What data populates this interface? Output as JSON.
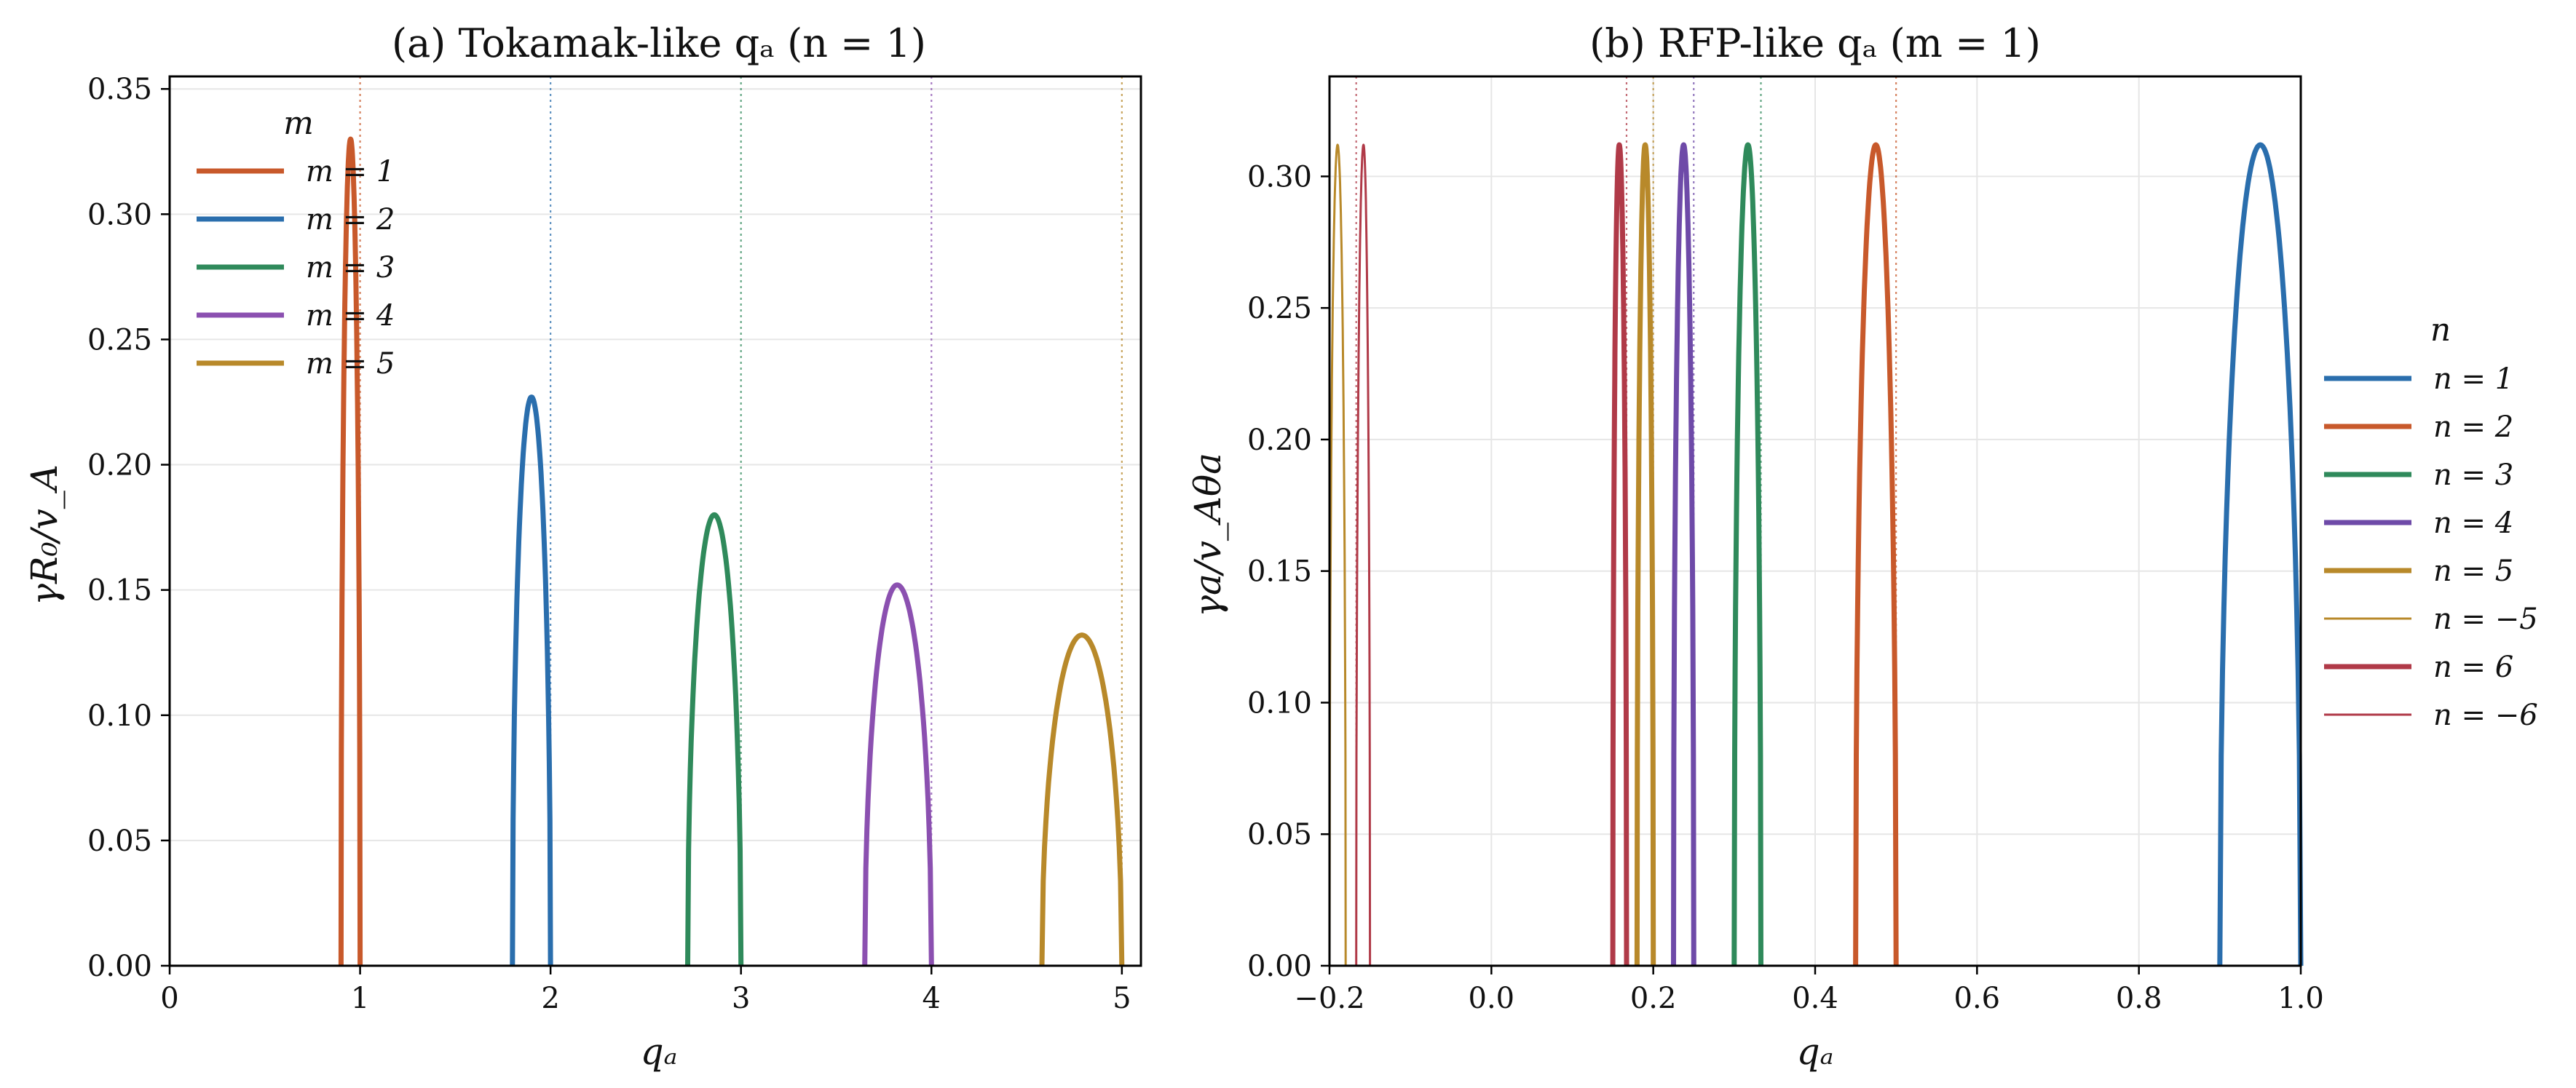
{
  "chart_data": [
    {
      "type": "line",
      "title": "(a) Tokamak-like qₐ (n = 1)",
      "xlabel": "qₐ",
      "ylabel": "γR₀/v_A",
      "xlim": [
        0,
        5.1
      ],
      "ylim": [
        0,
        0.355
      ],
      "xticks": [
        0,
        1,
        2,
        3,
        4,
        5
      ],
      "xtick_labels": [
        "0",
        "1",
        "2",
        "3",
        "4",
        "5"
      ],
      "yticks": [
        0,
        0.05,
        0.1,
        0.15,
        0.2,
        0.25,
        0.3,
        0.35
      ],
      "ytick_labels": [
        "0.00",
        "0.05",
        "0.10",
        "0.15",
        "0.20",
        "0.25",
        "0.30",
        "0.35"
      ],
      "grid": "y",
      "legend": {
        "title": "m",
        "placement": "top-left"
      },
      "series": [
        {
          "name": "m = 1",
          "color": "#c8592b",
          "x_start": 0.9,
          "x_peak": 0.95,
          "x_end": 1.0,
          "peak": 0.33,
          "rational_q": 1
        },
        {
          "name": "m = 2",
          "color": "#2a6ead",
          "x_start": 1.8,
          "x_peak": 1.9,
          "x_end": 2.0,
          "peak": 0.227,
          "rational_q": 2
        },
        {
          "name": "m = 3",
          "color": "#2f8a5b",
          "x_start": 2.72,
          "x_peak": 2.86,
          "x_end": 3.0,
          "peak": 0.18,
          "rational_q": 3
        },
        {
          "name": "m = 4",
          "color": "#8b50b0",
          "x_start": 3.65,
          "x_peak": 3.82,
          "x_end": 4.0,
          "peak": 0.152,
          "rational_q": 4
        },
        {
          "name": "m = 5",
          "color": "#b8892a",
          "x_start": 4.58,
          "x_peak": 4.79,
          "x_end": 5.0,
          "peak": 0.132,
          "rational_q": 5
        }
      ]
    },
    {
      "type": "line",
      "title": "(b) RFP-like qₐ (m = 1)",
      "xlabel": "qₐ",
      "ylabel": "γa/v_Aθa",
      "xlim": [
        -0.2,
        1.0
      ],
      "ylim": [
        0,
        0.338
      ],
      "xticks": [
        -0.2,
        0.0,
        0.2,
        0.4,
        0.6,
        0.8,
        1.0
      ],
      "xtick_labels": [
        "−0.2",
        "0.0",
        "0.2",
        "0.4",
        "0.6",
        "0.8",
        "1.0"
      ],
      "yticks": [
        0,
        0.05,
        0.1,
        0.15,
        0.2,
        0.25,
        0.3
      ],
      "ytick_labels": [
        "0.00",
        "0.05",
        "0.10",
        "0.15",
        "0.20",
        "0.25",
        "0.30"
      ],
      "grid": "both",
      "legend": {
        "title": "n",
        "placement": "outside-right"
      },
      "series": [
        {
          "name": "n = 1",
          "color": "#2a6ead",
          "width": "thick",
          "x_start": 0.9,
          "x_peak": 0.95,
          "x_end": 1.0,
          "peak": 0.312,
          "rational_q": 1.0
        },
        {
          "name": "n = 2",
          "color": "#c8592b",
          "width": "thick",
          "x_start": 0.45,
          "x_peak": 0.475,
          "x_end": 0.5,
          "peak": 0.312,
          "rational_q": 0.5
        },
        {
          "name": "n = 3",
          "color": "#2f8a5b",
          "width": "thick",
          "x_start": 0.3,
          "x_peak": 0.317,
          "x_end": 0.333,
          "peak": 0.312,
          "rational_q": 0.333
        },
        {
          "name": "n = 4",
          "color": "#6e4aa8",
          "width": "thick",
          "x_start": 0.225,
          "x_peak": 0.2375,
          "x_end": 0.25,
          "peak": 0.312,
          "rational_q": 0.25
        },
        {
          "name": "n = 5",
          "color": "#b8892a",
          "width": "thick",
          "x_start": 0.18,
          "x_peak": 0.19,
          "x_end": 0.2,
          "peak": 0.312,
          "rational_q": 0.2
        },
        {
          "name": "n = −5",
          "color": "#b8892a",
          "width": "thin",
          "x_start": -0.2,
          "x_peak": -0.19,
          "x_end": -0.18,
          "peak": 0.312,
          "rational_q": -0.2
        },
        {
          "name": "n = 6",
          "color": "#b03a48",
          "width": "thick",
          "x_start": 0.15,
          "x_peak": 0.158,
          "x_end": 0.167,
          "peak": 0.312,
          "rational_q": 0.167
        },
        {
          "name": "n = −6",
          "color": "#b03a48",
          "width": "thin",
          "x_start": -0.167,
          "x_peak": -0.158,
          "x_end": -0.15,
          "peak": 0.312,
          "rational_q": -0.167
        }
      ]
    }
  ]
}
